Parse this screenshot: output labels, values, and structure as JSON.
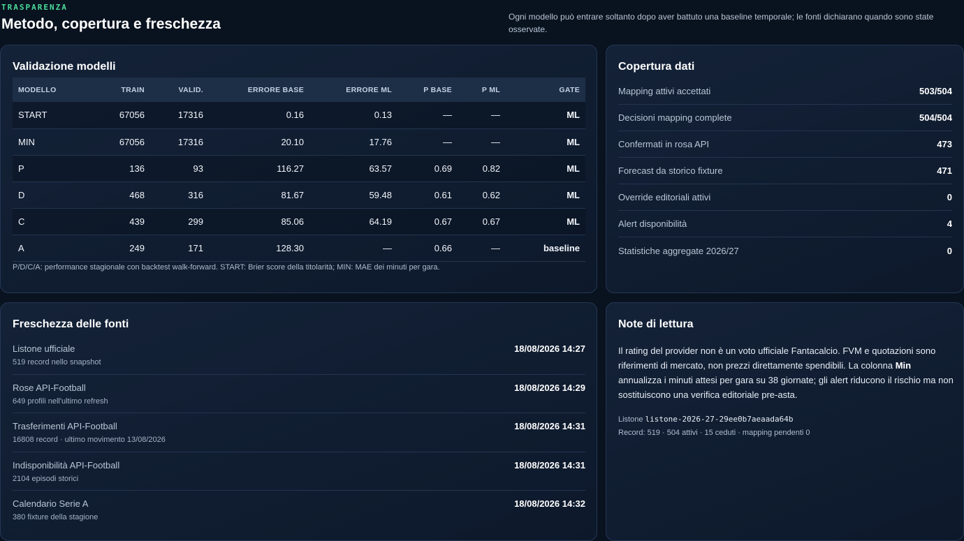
{
  "header": {
    "eyebrow": "TRASPARENZA",
    "title": "Metodo, copertura e freschezza",
    "description": "Ogni modello può entrare soltanto dopo aver battuto una baseline temporale; le fonti dichiarano quando sono state osservate."
  },
  "validation": {
    "title": "Validazione modelli",
    "columns": [
      "MODELLO",
      "TRAIN",
      "VALID.",
      "ERRORE BASE",
      "ERRORE ML",
      "P BASE",
      "P ML",
      "GATE"
    ],
    "rows": [
      {
        "model": "START",
        "train": "67056",
        "valid": "17316",
        "err_base": "0.16",
        "err_ml": "0.13",
        "p_base": "—",
        "p_ml": "—",
        "gate": "ML"
      },
      {
        "model": "MIN",
        "train": "67056",
        "valid": "17316",
        "err_base": "20.10",
        "err_ml": "17.76",
        "p_base": "—",
        "p_ml": "—",
        "gate": "ML"
      },
      {
        "model": "P",
        "train": "136",
        "valid": "93",
        "err_base": "116.27",
        "err_ml": "63.57",
        "p_base": "0.69",
        "p_ml": "0.82",
        "gate": "ML"
      },
      {
        "model": "D",
        "train": "468",
        "valid": "316",
        "err_base": "81.67",
        "err_ml": "59.48",
        "p_base": "0.61",
        "p_ml": "0.62",
        "gate": "ML"
      },
      {
        "model": "C",
        "train": "439",
        "valid": "299",
        "err_base": "85.06",
        "err_ml": "64.19",
        "p_base": "0.67",
        "p_ml": "0.67",
        "gate": "ML"
      },
      {
        "model": "A",
        "train": "249",
        "valid": "171",
        "err_base": "128.30",
        "err_ml": "—",
        "p_base": "0.66",
        "p_ml": "—",
        "gate": "baseline"
      }
    ],
    "note": "P/D/C/A: performance stagionale con backtest walk-forward. START: Brier score della titolarità; MIN: MAE dei minuti per gara."
  },
  "coverage": {
    "title": "Copertura dati",
    "items": [
      {
        "label": "Mapping attivi accettati",
        "value": "503/504"
      },
      {
        "label": "Decisioni mapping complete",
        "value": "504/504"
      },
      {
        "label": "Confermati in rosa API",
        "value": "473"
      },
      {
        "label": "Forecast da storico fixture",
        "value": "471"
      },
      {
        "label": "Override editoriali attivi",
        "value": "0"
      },
      {
        "label": "Alert disponibilità",
        "value": "4"
      },
      {
        "label": "Statistiche aggregate 2026/27",
        "value": "0"
      }
    ]
  },
  "freshness": {
    "title": "Freschezza delle fonti",
    "items": [
      {
        "name": "Listone ufficiale",
        "detail": "519 record nello snapshot",
        "time": "18/08/2026 14:27"
      },
      {
        "name": "Rose API-Football",
        "detail": "649 profili nell'ultimo refresh",
        "time": "18/08/2026 14:29"
      },
      {
        "name": "Trasferimenti API-Football",
        "detail": "16808 record · ultimo movimento 13/08/2026",
        "time": "18/08/2026 14:31"
      },
      {
        "name": "Indisponibilità API-Football",
        "detail": "2104 episodi storici",
        "time": "18/08/2026 14:31"
      },
      {
        "name": "Calendario Serie A",
        "detail": "380 fixture della stagione",
        "time": "18/08/2026 14:32"
      }
    ]
  },
  "notes": {
    "title": "Note di lettura",
    "text_1": "Il rating del provider non è un voto ufficiale Fantacalcio. FVM e quotazioni sono riferimenti di mercato, non prezzi direttamente spendibili. La colonna ",
    "text_bold": "Min",
    "text_2": " annualizza i minuti attesi per gara su 38 giornate; gli alert riducono il rischio ma non sostituiscono una verifica editoriale pre-asta.",
    "listone_label": "Listone ",
    "listone_id": "listone-2026-27-29ee0b7aeaada64b",
    "record_line": "Record: 519 · 504 attivi · 15 ceduti · mapping pendenti 0"
  },
  "colors": {
    "accent": "#4ade9a",
    "background": "#09121f",
    "card": "#142238"
  }
}
